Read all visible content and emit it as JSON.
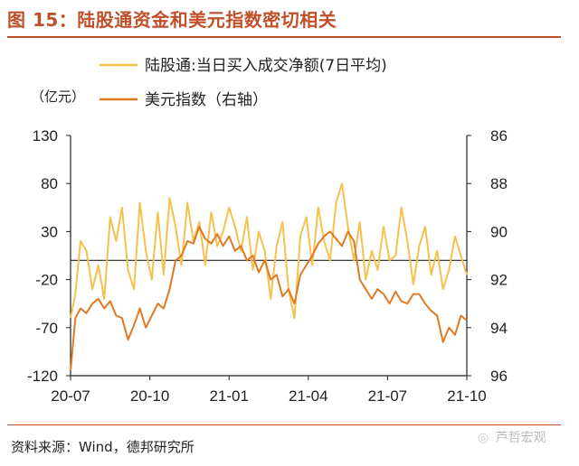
{
  "figure": {
    "title": "图 15：陆股通资金和美元指数密切相关",
    "source": "资料来源：Wind，德邦研究所",
    "watermark": "芦哲宏观",
    "watermark_icon": "wechat-icon"
  },
  "chart_data": {
    "type": "line",
    "title": "陆股通资金和美元指数密切相关",
    "left_axis_unit": "（亿元）",
    "left_ylim": [
      -120,
      130
    ],
    "left_ticks": [
      "130",
      "80",
      "30",
      "-20",
      "-70",
      "-120"
    ],
    "left_tick_values": [
      130,
      80,
      30,
      -20,
      -70,
      -120
    ],
    "right_ylim_inverted": [
      86,
      96
    ],
    "right_ticks": [
      "86",
      "88",
      "90",
      "92",
      "94",
      "96"
    ],
    "right_tick_values": [
      86,
      88,
      90,
      92,
      94,
      96
    ],
    "x_ticks": [
      "20-07",
      "20-10",
      "21-01",
      "21-04",
      "21-07",
      "21-10"
    ],
    "x_tick_positions": [
      0,
      0.2,
      0.4,
      0.6,
      0.8,
      1.0
    ],
    "zero_line": 0,
    "colors": {
      "inflow": "#f5c14e",
      "dxy": "#e07a22",
      "title": "#c0502a",
      "axis": "#222222"
    },
    "series": [
      {
        "name": "陆股通:当日买入成交净额(7日平均)",
        "axis": "left",
        "color": "#f5c14e",
        "t": [
          0.0,
          0.012,
          0.025,
          0.04,
          0.055,
          0.07,
          0.085,
          0.1,
          0.115,
          0.13,
          0.145,
          0.16,
          0.175,
          0.19,
          0.205,
          0.22,
          0.235,
          0.25,
          0.265,
          0.28,
          0.295,
          0.31,
          0.325,
          0.34,
          0.355,
          0.37,
          0.385,
          0.4,
          0.415,
          0.43,
          0.445,
          0.46,
          0.475,
          0.49,
          0.505,
          0.52,
          0.535,
          0.55,
          0.565,
          0.58,
          0.595,
          0.61,
          0.625,
          0.64,
          0.655,
          0.67,
          0.685,
          0.7,
          0.715,
          0.73,
          0.745,
          0.76,
          0.775,
          0.79,
          0.805,
          0.82,
          0.835,
          0.85,
          0.865,
          0.88,
          0.895,
          0.91,
          0.925,
          0.94,
          0.955,
          0.97,
          0.985,
          1.0
        ],
        "values": [
          -60,
          -35,
          20,
          10,
          -30,
          -5,
          -40,
          45,
          20,
          55,
          -10,
          -30,
          60,
          10,
          -20,
          50,
          -15,
          65,
          35,
          -5,
          60,
          20,
          40,
          -5,
          50,
          15,
          30,
          55,
          35,
          10,
          45,
          -10,
          30,
          10,
          -40,
          15,
          40,
          -30,
          -60,
          25,
          45,
          -5,
          55,
          20,
          0,
          60,
          80,
          35,
          0,
          40,
          -20,
          10,
          -10,
          35,
          0,
          5,
          55,
          20,
          -25,
          15,
          35,
          -15,
          10,
          -30,
          -10,
          25,
          5,
          -15
        ]
      },
      {
        "name": "美元指数（右轴）",
        "axis": "right",
        "color": "#e07a22",
        "t": [
          0.0,
          0.012,
          0.025,
          0.04,
          0.055,
          0.07,
          0.085,
          0.1,
          0.115,
          0.13,
          0.145,
          0.16,
          0.175,
          0.19,
          0.205,
          0.22,
          0.235,
          0.25,
          0.265,
          0.28,
          0.295,
          0.31,
          0.325,
          0.34,
          0.355,
          0.37,
          0.385,
          0.4,
          0.415,
          0.43,
          0.445,
          0.46,
          0.475,
          0.49,
          0.505,
          0.52,
          0.535,
          0.55,
          0.565,
          0.58,
          0.595,
          0.61,
          0.625,
          0.64,
          0.655,
          0.67,
          0.685,
          0.7,
          0.715,
          0.73,
          0.745,
          0.76,
          0.775,
          0.79,
          0.805,
          0.82,
          0.835,
          0.85,
          0.865,
          0.88,
          0.895,
          0.91,
          0.925,
          0.94,
          0.955,
          0.97,
          0.985,
          1.0
        ],
        "values": [
          95.8,
          93.6,
          93.2,
          93.4,
          93.0,
          92.8,
          93.2,
          92.9,
          93.5,
          93.6,
          94.5,
          93.9,
          93.2,
          94.0,
          93.5,
          93.0,
          93.2,
          92.4,
          91.2,
          91.0,
          90.4,
          90.5,
          89.8,
          90.3,
          90.5,
          90.1,
          90.6,
          90.2,
          90.8,
          90.6,
          91.2,
          91.0,
          91.7,
          91.2,
          92.0,
          91.8,
          92.7,
          92.4,
          93.0,
          91.8,
          91.4,
          91.0,
          90.5,
          90.2,
          90.0,
          90.3,
          90.6,
          90.0,
          90.4,
          92.0,
          92.4,
          92.8,
          92.4,
          92.6,
          93.0,
          92.5,
          92.9,
          93.0,
          92.6,
          92.6,
          93.0,
          93.3,
          93.5,
          94.6,
          94.0,
          94.3,
          93.5,
          93.7
        ]
      }
    ],
    "legend": [
      "陆股通:当日买入成交净额(7日平均)",
      "美元指数（右轴）"
    ],
    "legend_position": "top-left"
  }
}
